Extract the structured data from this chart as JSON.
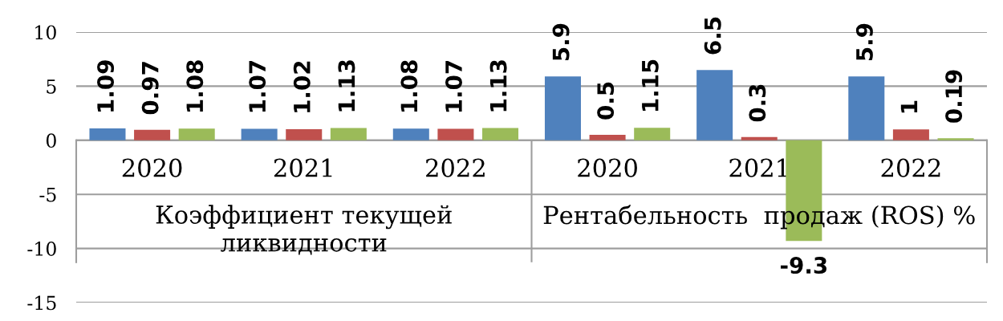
{
  "chart_data": {
    "type": "bar",
    "categories": [
      "2020",
      "2021",
      "2022",
      "2020",
      "2021",
      "2022"
    ],
    "annotations": [
      "Коэффициент текущей ликвидности",
      "Рентабельность  продаж (ROS) %"
    ],
    "series": [
      {
        "color": "#4f81bd",
        "values": [
          1.09,
          1.07,
          1.08,
          5.9,
          6.5,
          5.9
        ]
      },
      {
        "color": "#c0504d",
        "values": [
          0.97,
          1.02,
          1.07,
          0.5,
          0.3,
          1
        ]
      },
      {
        "color": "#9bbb59",
        "values": [
          1.08,
          1.13,
          1.13,
          1.15,
          -9.3,
          0.19
        ]
      }
    ],
    "ylim": [
      -15,
      10
    ],
    "yticks": [
      -15,
      -10,
      -5,
      0,
      5,
      10
    ],
    "grid": "y",
    "data_labels": true
  }
}
